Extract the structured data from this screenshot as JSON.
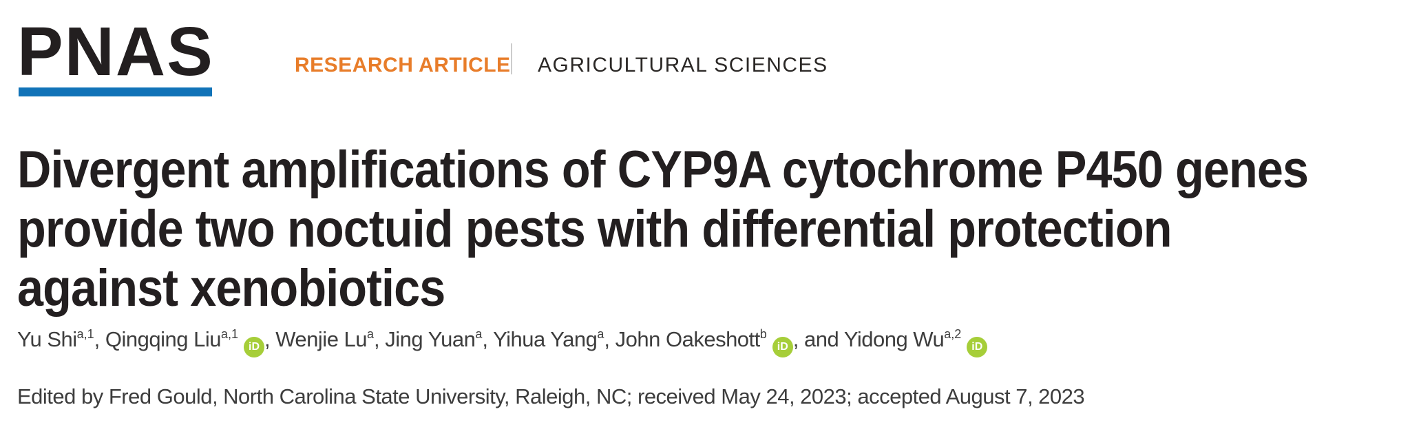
{
  "theme": {
    "ink": "#231f20",
    "blue": "#1173b8",
    "orange": "#e87d2a",
    "divider": "#cccccc",
    "gray_text": "#3d3d3d",
    "orcid_green": "#a6ce39"
  },
  "brand": {
    "logo_text": "PNAS"
  },
  "header": {
    "article_type": "RESEARCH ARTICLE",
    "section": "AGRICULTURAL SCIENCES"
  },
  "title": {
    "lines": [
      "Divergent amplifications of CYP9A cytochrome P450 genes",
      "provide two noctuid pests with differential protection",
      "against xenobiotics"
    ]
  },
  "authors": {
    "orcid_label": "iD",
    "list": [
      {
        "sep": "",
        "name": "Yu Shi",
        "sup": "a,1",
        "orcid": false
      },
      {
        "sep": ", ",
        "name": "Qingqing Liu",
        "sup": "a,1",
        "orcid": true
      },
      {
        "sep": ", ",
        "name": "Wenjie Lu",
        "sup": "a",
        "orcid": false
      },
      {
        "sep": ", ",
        "name": "Jing Yuan",
        "sup": "a",
        "orcid": false
      },
      {
        "sep": ", ",
        "name": "Yihua Yang",
        "sup": "a",
        "orcid": false
      },
      {
        "sep": ", ",
        "name": "John Oakeshott",
        "sup": "b",
        "orcid": true
      },
      {
        "sep": ", and ",
        "name": "Yidong Wu",
        "sup": "a,2",
        "orcid": true
      }
    ]
  },
  "editor_note": "Edited by Fred Gould, North Carolina State University, Raleigh, NC; received May 24, 2023; accepted August 7, 2023"
}
